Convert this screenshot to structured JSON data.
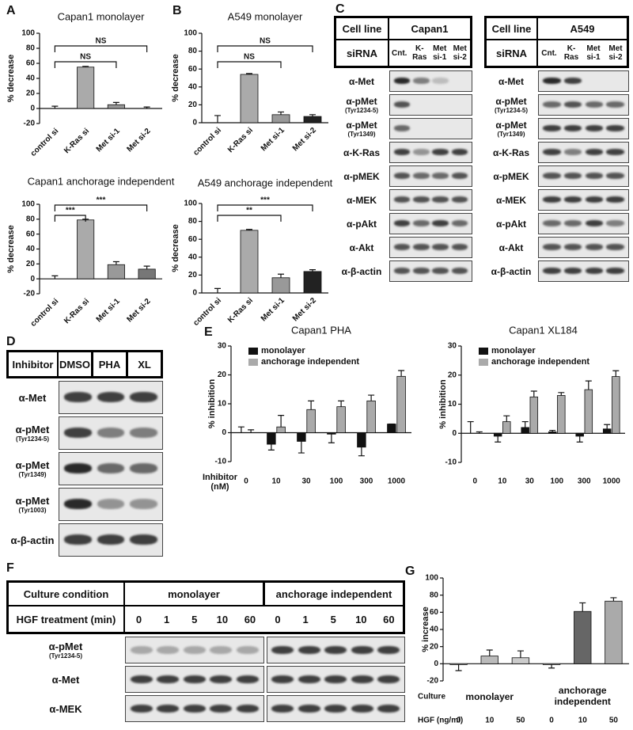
{
  "panel_labels": [
    "A",
    "B",
    "C",
    "D",
    "E",
    "F",
    "G"
  ],
  "chart_data": [
    {
      "type": "bar",
      "title": "Capan1 monolayer",
      "ylabel": "% decrease",
      "categories": [
        "control si",
        "K-Ras si",
        "Met si-1",
        "Met si-2"
      ],
      "values": [
        0,
        55,
        5,
        0
      ],
      "errors": [
        3,
        1,
        3,
        2
      ],
      "colors": [
        "#ffffff",
        "#aaaaaa",
        "#999999",
        "#999999"
      ],
      "ylim": [
        -20,
        100
      ],
      "yticks": [
        -20,
        0,
        20,
        40,
        60,
        80,
        100
      ],
      "significance": [
        {
          "label": "NS",
          "pair": [
            "control si",
            "Met si-1"
          ]
        },
        {
          "label": "NS",
          "pair": [
            "control si",
            "Met si-2"
          ]
        }
      ]
    },
    {
      "type": "bar",
      "title": "Capan1 anchorage independent",
      "ylabel": "% decrease",
      "categories": [
        "control si",
        "K-Ras si",
        "Met si-1",
        "Met si-2"
      ],
      "values": [
        0,
        79,
        19,
        13
      ],
      "errors": [
        4,
        1,
        4,
        4
      ],
      "colors": [
        "#ffffff",
        "#aaaaaa",
        "#999999",
        "#777777"
      ],
      "ylim": [
        -20,
        100
      ],
      "yticks": [
        -20,
        0,
        20,
        40,
        60,
        80,
        100
      ],
      "significance": [
        {
          "label": "***",
          "pair": [
            "control si",
            "K-Ras si"
          ]
        },
        {
          "label": "***",
          "pair": [
            "control si",
            "Met si-2"
          ]
        }
      ]
    },
    {
      "type": "bar",
      "title": "A549 monolayer",
      "ylabel": "% decrease",
      "categories": [
        "control si",
        "K-Ras si",
        "Met si-1",
        "Met si-2"
      ],
      "values": [
        0,
        54,
        9,
        7
      ],
      "errors": [
        8,
        1,
        3,
        2
      ],
      "colors": [
        "#ffffff",
        "#aaaaaa",
        "#999999",
        "#222222"
      ],
      "ylim": [
        0,
        100
      ],
      "yticks": [
        0,
        20,
        40,
        60,
        80,
        100
      ],
      "significance": [
        {
          "label": "NS",
          "pair": [
            "control si",
            "Met si-1"
          ]
        },
        {
          "label": "NS",
          "pair": [
            "control si",
            "Met si-2"
          ]
        }
      ]
    },
    {
      "type": "bar",
      "title": "A549 anchorage independent",
      "ylabel": "% decrease",
      "categories": [
        "control si",
        "K-Ras si",
        "Met si-1",
        "Met si-2"
      ],
      "values": [
        0,
        70,
        17,
        24
      ],
      "errors": [
        5,
        1,
        4,
        2
      ],
      "colors": [
        "#ffffff",
        "#aaaaaa",
        "#999999",
        "#222222"
      ],
      "ylim": [
        0,
        100
      ],
      "yticks": [
        0,
        20,
        40,
        60,
        80,
        100
      ],
      "significance": [
        {
          "label": "**",
          "pair": [
            "control si",
            "Met si-1"
          ]
        },
        {
          "label": "***",
          "pair": [
            "control si",
            "Met si-2"
          ]
        }
      ]
    },
    {
      "type": "grouped_bar",
      "title": "Capan1 PHA",
      "ylabel": "% inhibition",
      "xlabel": "Inhibitor (nM)",
      "categories": [
        "0",
        "10",
        "30",
        "100",
        "300",
        "1000"
      ],
      "series": [
        {
          "name": "monolayer",
          "color": "#111111",
          "values": [
            0,
            -4,
            -3,
            -0.5,
            -5,
            3
          ],
          "errors": [
            2,
            2,
            4,
            3,
            3,
            0
          ]
        },
        {
          "name": "anchorage independent",
          "color": "#aaaaaa",
          "values": [
            0,
            2,
            8,
            9,
            11,
            19.5
          ],
          "errors": [
            1,
            4,
            3,
            2,
            2,
            2
          ]
        }
      ],
      "ylim": [
        -10,
        30
      ],
      "yticks": [
        -10,
        0,
        10,
        20,
        30
      ],
      "legend": "upper left"
    },
    {
      "type": "grouped_bar",
      "title": "Capan1 XL184",
      "ylabel": "% inhibition",
      "categories": [
        "0",
        "10",
        "30",
        "100",
        "300",
        "1000"
      ],
      "series": [
        {
          "name": "monolayer",
          "color": "#111111",
          "values": [
            0,
            -1,
            2,
            0.5,
            -1,
            1.5
          ],
          "errors": [
            4,
            2,
            2,
            0.5,
            2,
            1.5
          ]
        },
        {
          "name": "anchorage independent",
          "color": "#aaaaaa",
          "values": [
            0,
            4,
            12.5,
            13,
            15,
            19.5
          ],
          "errors": [
            0.5,
            2,
            2,
            1,
            3,
            2
          ]
        }
      ],
      "ylim": [
        -10,
        30
      ],
      "yticks": [
        -10,
        0,
        10,
        20,
        30
      ],
      "legend": "upper left"
    },
    {
      "type": "bar",
      "ylabel": "% increase",
      "row_labels": [
        "Culture",
        "HGF (ng/ml)"
      ],
      "groups": [
        "monolayer",
        "anchorage independent"
      ],
      "categories": [
        "0",
        "10",
        "50",
        "0",
        "10",
        "50"
      ],
      "values": [
        -1,
        9,
        7,
        -1,
        61,
        73
      ],
      "errors": [
        7,
        7,
        8,
        4,
        10,
        4
      ],
      "colors": [
        "#ffffff",
        "#bbbbbb",
        "#cccccc",
        "#ffffff",
        "#666666",
        "#aaaaaa"
      ],
      "ylim": [
        -20,
        100
      ],
      "yticks": [
        -20,
        0,
        20,
        40,
        60,
        80,
        100
      ]
    }
  ],
  "blots": [
    {
      "header": [
        {
          "label": "Cell line",
          "cells": [
            "Capan1"
          ]
        },
        {
          "label": "siRNA",
          "cells": [
            "Cnt.",
            "K-Ras",
            "Met si-1",
            "Met si-2"
          ]
        }
      ],
      "rows": [
        {
          "label": "α-Met"
        },
        {
          "label": "α-pMet",
          "sub": "(Tyr1234-5)"
        },
        {
          "label": "α-pMet",
          "sub": "(Tyr1349)"
        },
        {
          "label": "α-K-Ras"
        },
        {
          "label": "α-pMEK"
        },
        {
          "label": "α-MEK"
        },
        {
          "label": "α-pAkt"
        },
        {
          "label": "α-Akt"
        },
        {
          "label": "α-β-actin"
        }
      ]
    },
    {
      "header": [
        {
          "label": "Cell line",
          "cells": [
            "A549"
          ]
        },
        {
          "label": "siRNA",
          "cells": [
            "Cnt.",
            "K-Ras",
            "Met si-1",
            "Met si-2"
          ]
        }
      ],
      "rows": [
        {
          "label": "α-Met"
        },
        {
          "label": "α-pMet",
          "sub": "(Tyr1234-5)"
        },
        {
          "label": "α-pMet",
          "sub": "(Tyr1349)"
        },
        {
          "label": "α-K-Ras"
        },
        {
          "label": "α-pMEK"
        },
        {
          "label": "α-MEK"
        },
        {
          "label": "α-pAkt"
        },
        {
          "label": "α-Akt"
        },
        {
          "label": "α-β-actin"
        }
      ]
    },
    {
      "header": [
        {
          "label": "Inhibitor",
          "cells": [
            "DMSO",
            "PHA",
            "XL"
          ]
        }
      ],
      "rows": [
        {
          "label": "α-Met"
        },
        {
          "label": "α-pMet",
          "sub": "(Tyr1234-5)"
        },
        {
          "label": "α-pMet",
          "sub": "(Tyr1349)"
        },
        {
          "label": "α-pMet",
          "sub": "(Tyr1003)"
        },
        {
          "label": "α-β-actin"
        }
      ]
    },
    {
      "header": [
        {
          "label": "Culture condition",
          "cells": [
            "monolayer",
            "anchorage independent"
          ]
        },
        {
          "label": "HGF treatment (min)",
          "cells": [
            "0",
            "1",
            "5",
            "10",
            "60",
            "0",
            "1",
            "5",
            "10",
            "60"
          ]
        }
      ],
      "rows": [
        {
          "label": "α-pMet",
          "sub": "(Tyr1234-5)"
        },
        {
          "label": "α-Met"
        },
        {
          "label": "α-MEK"
        }
      ]
    }
  ]
}
